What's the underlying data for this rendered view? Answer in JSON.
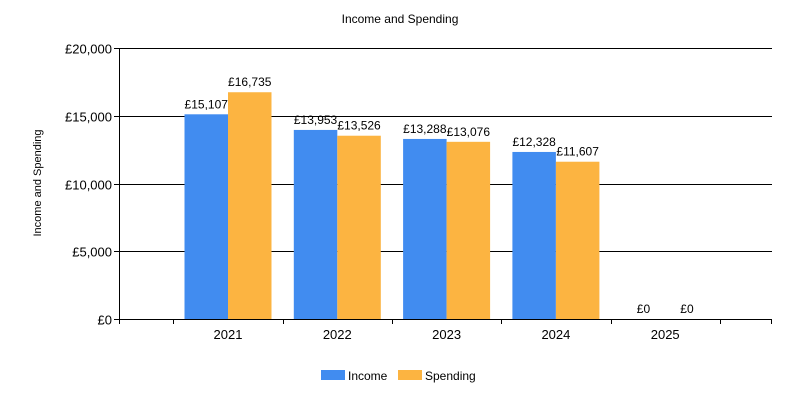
{
  "chart_data": {
    "type": "bar",
    "title": "Income and Spending",
    "xlabel": "",
    "ylabel": "Income and Spending",
    "categories": [
      "2021",
      "2022",
      "2023",
      "2024",
      "2025"
    ],
    "series": [
      {
        "name": "Income",
        "color": "#418CF0",
        "values": [
          15107,
          13953,
          13288,
          12328,
          0
        ],
        "labels": [
          "£15,107",
          "£13,953",
          "£13,288",
          "£12,328",
          "£0"
        ]
      },
      {
        "name": "Spending",
        "color": "#FCB441",
        "values": [
          16735,
          13526,
          13076,
          11607,
          0
        ],
        "labels": [
          "£16,735",
          "£13,526",
          "£13,076",
          "£11,607",
          "£0"
        ]
      }
    ],
    "ylim": [
      0,
      20000
    ],
    "yticks": [
      0,
      5000,
      10000,
      15000,
      20000
    ],
    "ytick_labels": [
      "£0",
      "£5,000",
      "£10,000",
      "£15,000",
      "£20,000"
    ],
    "grid": true,
    "legend_position": "bottom-center"
  }
}
